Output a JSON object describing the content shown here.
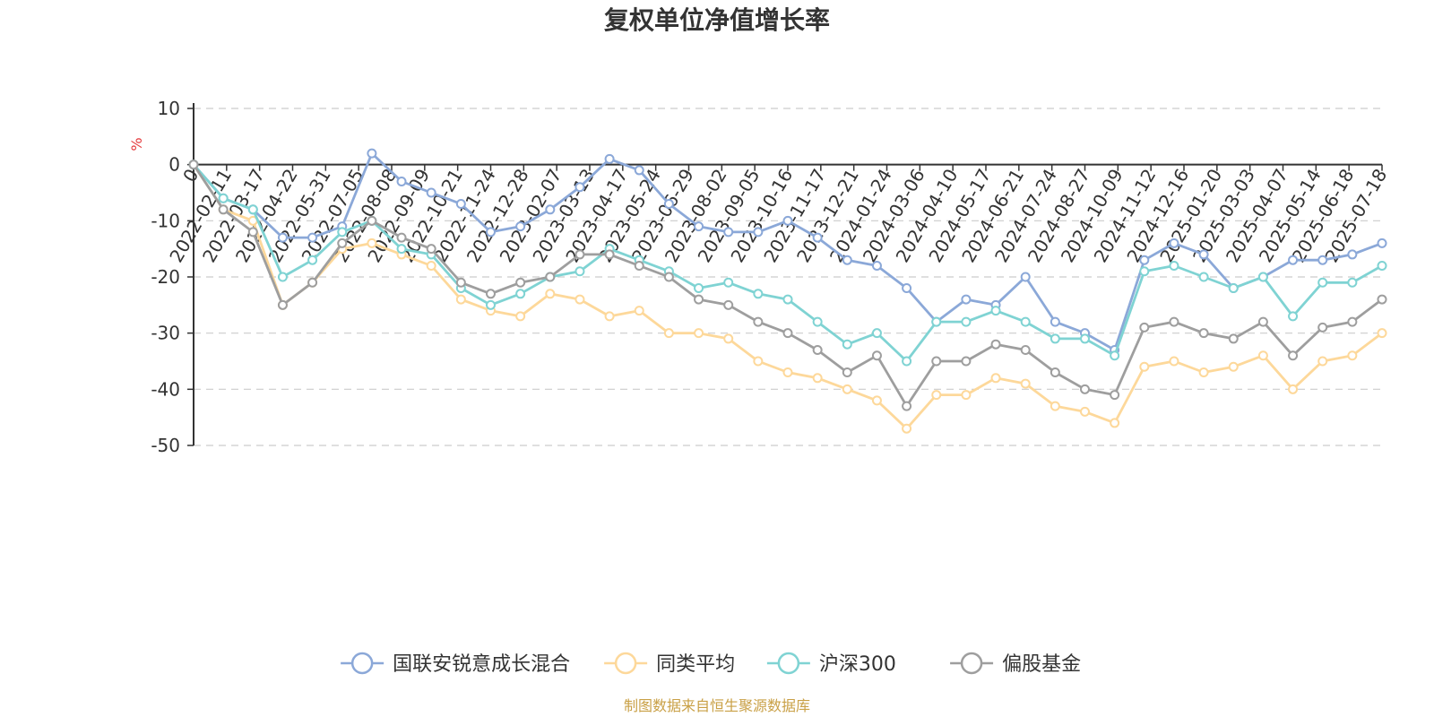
{
  "chart_data": {
    "type": "line",
    "title": "复权单位净值增长率",
    "ylabel": "%",
    "ylim": [
      -50,
      10
    ],
    "yticks": [
      "10",
      "0",
      "-10",
      "-20",
      "-30",
      "-40",
      "-50"
    ],
    "grid": true,
    "legend_position": "bottom",
    "x_tick_labels": [
      "0",
      "2022-02-11",
      "2022-03-17",
      "2022-04-22",
      "2022-05-31",
      "2022-07-05",
      "2022-08-08",
      "2022-09-09",
      "2022-10-21",
      "2022-11-24",
      "2022-12-28",
      "2023-02-07",
      "2023-03-13",
      "2023-04-17",
      "2023-05-24",
      "2023-06-29",
      "2023-08-02",
      "2023-09-05",
      "2023-10-16",
      "2023-11-17",
      "2023-12-21",
      "2024-01-24",
      "2024-03-06",
      "2024-04-10",
      "2024-05-17",
      "2024-06-21",
      "2024-07-24",
      "2024-08-27",
      "2024-10-09",
      "2024-11-12",
      "2024-12-16",
      "2025-01-20",
      "2025-03-03",
      "2025-04-07",
      "2025-05-14",
      "2025-06-18",
      "2025-07-18"
    ],
    "series": [
      {
        "name": "国联安锐意成长混合",
        "color": "#8ba8d8",
        "values": [
          0,
          -6,
          -8,
          -13,
          -13,
          -11,
          2,
          -3,
          -5,
          -7,
          -12,
          -11,
          -8,
          -4,
          1,
          -1,
          -7,
          -11,
          -12,
          -12,
          -10,
          -13,
          -17,
          -18,
          -22,
          -28,
          -24,
          -25,
          -20,
          -28,
          -30,
          -33,
          -17,
          -14,
          -16,
          -22,
          -20,
          -17,
          -17,
          -16,
          -14
        ]
      },
      {
        "name": "同类平均",
        "color": "#fdd89a",
        "values": [
          0,
          -8,
          -10,
          -25,
          -21,
          -15,
          -14,
          -16,
          -18,
          -24,
          -26,
          -27,
          -23,
          -24,
          -27,
          -26,
          -30,
          -30,
          -31,
          -35,
          -37,
          -38,
          -40,
          -42,
          -47,
          -41,
          -41,
          -38,
          -39,
          -43,
          -44,
          -46,
          -36,
          -35,
          -37,
          -36,
          -34,
          -40,
          -35,
          -34,
          -30
        ]
      },
      {
        "name": "沪深300",
        "color": "#7fd3d3",
        "values": [
          0,
          -6,
          -8,
          -20,
          -17,
          -12,
          -10,
          -15,
          -16,
          -22,
          -25,
          -23,
          -20,
          -19,
          -15,
          -17,
          -19,
          -22,
          -21,
          -23,
          -24,
          -28,
          -32,
          -30,
          -35,
          -28,
          -28,
          -26,
          -28,
          -31,
          -31,
          -34,
          -19,
          -18,
          -20,
          -22,
          -20,
          -27,
          -21,
          -21,
          -18
        ]
      },
      {
        "name": "偏股基金",
        "color": "#9e9e9e",
        "values": [
          0,
          -8,
          -12,
          -25,
          -21,
          -14,
          -10,
          -13,
          -15,
          -21,
          -23,
          -21,
          -20,
          -16,
          -16,
          -18,
          -20,
          -24,
          -25,
          -28,
          -30,
          -33,
          -37,
          -34,
          -43,
          -35,
          -35,
          -32,
          -33,
          -37,
          -40,
          -41,
          -29,
          -28,
          -30,
          -31,
          -28,
          -34,
          -29,
          -28,
          -24
        ]
      }
    ]
  },
  "footer": {
    "source": "制图数据来自恒生聚源数据库"
  },
  "colors": {
    "title": "#333333",
    "axis": "#333333",
    "grid": "#cccccc",
    "unit": "#e4393c",
    "source": "#c9a046"
  }
}
